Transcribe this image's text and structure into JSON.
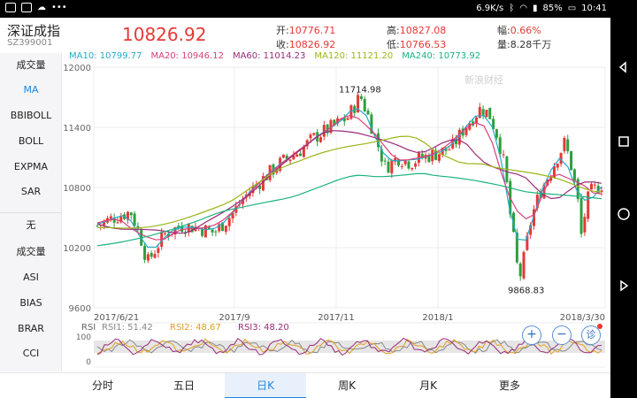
{
  "status_bar": {
    "network_speed": "6.9K/s",
    "battery": "85%",
    "time": "10:41"
  },
  "stock": {
    "name": "深证成指",
    "code": "SZ399001",
    "price": "10826.92",
    "quotes": {
      "open_label": "开:",
      "open": "10776.71",
      "close_label": "收:",
      "close": "10826.92",
      "high_label": "高:",
      "high": "10827.08",
      "low_label": "低:",
      "low": "10766.53",
      "change_label": "幅:",
      "change": "0.66%",
      "volume_label": "量:",
      "volume": "8.28千万"
    }
  },
  "ma_legend": [
    {
      "label": "MA10: 10799.77",
      "color": "#26a9c9"
    },
    {
      "label": "MA20: 10946.12",
      "color": "#d8407a"
    },
    {
      "label": "MA60: 11014.23",
      "color": "#9b2a7a"
    },
    {
      "label": "MA120: 11121.20",
      "color": "#9ab61a"
    },
    {
      "label": "MA240: 10773.92",
      "color": "#19b37c"
    }
  ],
  "watermark": "新浪财经",
  "sidebar": {
    "items": [
      {
        "label": "成交量",
        "active": false
      },
      {
        "label": "MA",
        "active": true
      },
      {
        "label": "BBIBOLL",
        "active": false
      },
      {
        "label": "BOLL",
        "active": false
      },
      {
        "label": "EXPMA",
        "active": false
      },
      {
        "label": "SAR",
        "active": false
      },
      {
        "label": "无",
        "active": false
      },
      {
        "label": "成交量",
        "active": false
      },
      {
        "label": "ASI",
        "active": false
      },
      {
        "label": "BIAS",
        "active": false
      },
      {
        "label": "BRAR",
        "active": false
      },
      {
        "label": "CCI",
        "active": false
      }
    ]
  },
  "chart_data": {
    "type": "candlestick",
    "y_ticks": [
      "12000",
      "11400",
      "10800",
      "10200",
      "9600"
    ],
    "ylim": [
      9600,
      12000
    ],
    "x_ticks": [
      "2017/6/21",
      "2017/9",
      "2017/11",
      "2018/1",
      "2018/3/30"
    ],
    "annotations": {
      "max": "11714.98",
      "min": "9868.83"
    },
    "colors": {
      "up": "#e53935",
      "down": "#2e9e3e"
    },
    "rsi_panel": {
      "title": "RSI",
      "series": [
        {
          "label": "RSI1: 51.42",
          "color": "#888888"
        },
        {
          "label": "RSI2: 48.67",
          "color": "#e0a020"
        },
        {
          "label": "RSI3: 48.20",
          "color": "#9b2a7a"
        }
      ],
      "y_ticks": [
        "100",
        "0"
      ]
    }
  },
  "zoom_controls": {
    "zoom_in": "+",
    "zoom_out": "−",
    "diagnose": "诊"
  },
  "tabs": [
    {
      "label": "分时",
      "active": false
    },
    {
      "label": "五日",
      "active": false
    },
    {
      "label": "日K",
      "active": true
    },
    {
      "label": "周K",
      "active": false
    },
    {
      "label": "月K",
      "active": false
    },
    {
      "label": "更多",
      "active": false
    }
  ]
}
